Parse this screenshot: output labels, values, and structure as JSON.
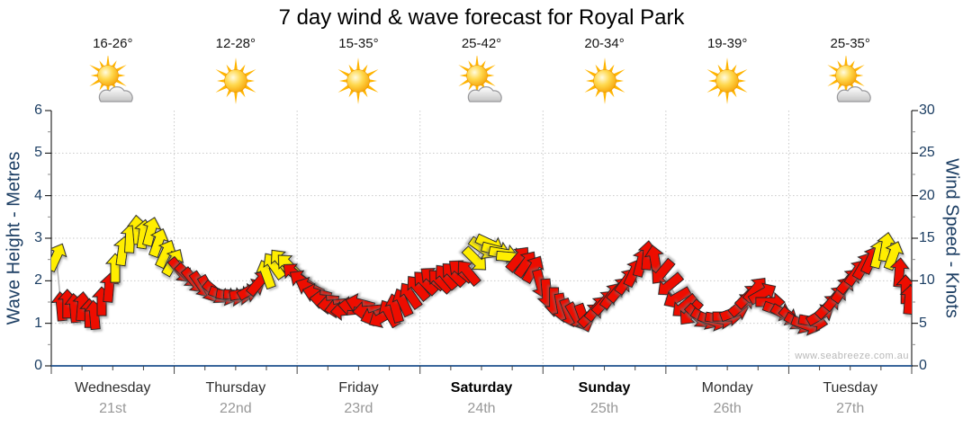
{
  "title": "7 day wind & wave forecast for Royal Park",
  "watermark": "www.seabreeze.com.au",
  "header": {
    "days": [
      {
        "name": "Wednesday",
        "date": "21st",
        "temp": "16-26°",
        "icon": "sun-cloud",
        "weekend": false
      },
      {
        "name": "Thursday",
        "date": "22nd",
        "temp": "12-28°",
        "icon": "sun",
        "weekend": false
      },
      {
        "name": "Friday",
        "date": "23rd",
        "temp": "15-35°",
        "icon": "sun",
        "weekend": false
      },
      {
        "name": "Saturday",
        "date": "24th",
        "temp": "25-42°",
        "icon": "sun-cloud",
        "weekend": true
      },
      {
        "name": "Sunday",
        "date": "25th",
        "temp": "20-34°",
        "icon": "sun",
        "weekend": true
      },
      {
        "name": "Monday",
        "date": "26th",
        "temp": "19-39°",
        "icon": "sun",
        "weekend": false
      },
      {
        "name": "Tuesday",
        "date": "27th",
        "temp": "25-35°",
        "icon": "sun-cloud",
        "weekend": false
      }
    ]
  },
  "axes": {
    "left": {
      "label": "Wave Height - Metres",
      "ticks": [
        "0",
        "1",
        "2",
        "3",
        "4",
        "5",
        "6"
      ]
    },
    "right": {
      "label": "Wind Speed - Knots",
      "ticks": [
        "0",
        "5",
        "10",
        "15",
        "20",
        "25",
        "30"
      ]
    }
  },
  "colors": {
    "arrow_red": "#ee1100",
    "arrow_yellow": "#ffee00",
    "arrow_outline": "#222222",
    "axis_text": "#1c3e63",
    "bottom_axis": "#38659b",
    "grid": "#c9c9c9",
    "trend_line": "#b3b3b3"
  },
  "chart_data": {
    "type": "scatter",
    "marker": "wind-direction-arrow",
    "title": "7 day wind & wave forecast for Royal Park",
    "x_unit": "days (0 = start of Wednesday 21st, 7 = end of Tuesday 27th)",
    "x_categories": [
      "Wednesday 21st",
      "Thursday 22nd",
      "Friday 23rd",
      "Saturday 24th",
      "Sunday 25th",
      "Monday 26th",
      "Tuesday 27th"
    ],
    "y_right_label": "Wind Speed - Knots",
    "y_right_range": [
      0,
      30
    ],
    "y_left_label": "Wave Height - Metres",
    "y_left_range": [
      0,
      6
    ],
    "grid": "dotted horizontal each 5 knots, dotted vertical each day boundary",
    "dir_convention": "degrees, 0 = arrow pointing up, 90 = pointing right",
    "arrow_colors_used": [
      "red",
      "yellow"
    ],
    "arrows": [
      [
        0.04,
        12.8,
        25,
        "y"
      ],
      [
        0.08,
        7.0,
        -5,
        "r"
      ],
      [
        0.13,
        7.3,
        0,
        "r"
      ],
      [
        0.19,
        6.8,
        -5,
        "r"
      ],
      [
        0.25,
        7.0,
        5,
        "r"
      ],
      [
        0.31,
        6.2,
        0,
        "r"
      ],
      [
        0.35,
        6.0,
        -5,
        "r"
      ],
      [
        0.41,
        7.6,
        0,
        "r"
      ],
      [
        0.47,
        9.2,
        5,
        "r"
      ],
      [
        0.52,
        11.5,
        0,
        "y"
      ],
      [
        0.58,
        13.5,
        8,
        "y"
      ],
      [
        0.64,
        15.0,
        3,
        "y"
      ],
      [
        0.7,
        16.0,
        -5,
        "y"
      ],
      [
        0.75,
        15.5,
        8,
        "y"
      ],
      [
        0.81,
        15.8,
        15,
        "y"
      ],
      [
        0.87,
        14.5,
        20,
        "y"
      ],
      [
        0.93,
        13.2,
        25,
        "y"
      ],
      [
        0.99,
        12.2,
        30,
        "y"
      ],
      [
        1.05,
        11.2,
        140,
        "r"
      ],
      [
        1.11,
        10.6,
        135,
        "r"
      ],
      [
        1.16,
        10.0,
        140,
        "r"
      ],
      [
        1.22,
        9.5,
        145,
        "r"
      ],
      [
        1.28,
        9.0,
        150,
        "r"
      ],
      [
        1.34,
        8.6,
        130,
        "r"
      ],
      [
        1.4,
        8.3,
        110,
        "r"
      ],
      [
        1.46,
        8.2,
        100,
        "r"
      ],
      [
        1.52,
        8.3,
        95,
        "r"
      ],
      [
        1.57,
        8.5,
        80,
        "r"
      ],
      [
        1.63,
        9.0,
        60,
        "r"
      ],
      [
        1.69,
        9.8,
        40,
        "r"
      ],
      [
        1.75,
        10.8,
        -20,
        "y"
      ],
      [
        1.81,
        11.8,
        -35,
        "y"
      ],
      [
        1.87,
        12.3,
        -40,
        "y"
      ],
      [
        1.93,
        11.8,
        -45,
        "y"
      ],
      [
        1.98,
        10.8,
        -50,
        "r"
      ],
      [
        2.04,
        10.0,
        -55,
        "r"
      ],
      [
        2.1,
        9.2,
        -65,
        "r"
      ],
      [
        2.16,
        8.5,
        -75,
        "r"
      ],
      [
        2.22,
        7.8,
        -85,
        "r"
      ],
      [
        2.28,
        7.2,
        -95,
        "r"
      ],
      [
        2.34,
        6.8,
        -100,
        "r"
      ],
      [
        2.39,
        6.5,
        -95,
        "r"
      ],
      [
        2.45,
        7.0,
        -85,
        "r"
      ],
      [
        2.51,
        7.3,
        -75,
        "r"
      ],
      [
        2.57,
        6.5,
        -95,
        "r"
      ],
      [
        2.63,
        5.9,
        -110,
        "r"
      ],
      [
        2.69,
        5.7,
        -120,
        "r"
      ],
      [
        2.75,
        6.2,
        -30,
        "r"
      ],
      [
        2.8,
        6.8,
        -15,
        "r"
      ],
      [
        2.86,
        7.5,
        -25,
        "r"
      ],
      [
        2.92,
        8.3,
        -35,
        "r"
      ],
      [
        2.98,
        9.2,
        -40,
        "r"
      ],
      [
        3.04,
        9.8,
        -45,
        "r"
      ],
      [
        3.1,
        10.3,
        -50,
        "r"
      ],
      [
        3.16,
        10.0,
        -45,
        "r"
      ],
      [
        3.21,
        10.5,
        -40,
        "r"
      ],
      [
        3.27,
        10.8,
        -45,
        "r"
      ],
      [
        3.33,
        11.2,
        -50,
        "r"
      ],
      [
        3.39,
        11.0,
        -40,
        "r"
      ],
      [
        3.45,
        12.5,
        135,
        "y"
      ],
      [
        3.51,
        13.8,
        125,
        "y"
      ],
      [
        3.57,
        14.3,
        115,
        "y"
      ],
      [
        3.62,
        13.6,
        105,
        "y"
      ],
      [
        3.68,
        13.2,
        100,
        "y"
      ],
      [
        3.74,
        12.8,
        95,
        "y"
      ],
      [
        3.8,
        12.6,
        40,
        "r"
      ],
      [
        3.86,
        12.0,
        35,
        "r"
      ],
      [
        3.92,
        11.4,
        30,
        "r"
      ],
      [
        3.98,
        9.6,
        165,
        "r"
      ],
      [
        4.03,
        8.5,
        175,
        "r"
      ],
      [
        4.09,
        7.5,
        180,
        "r"
      ],
      [
        4.15,
        6.8,
        170,
        "r"
      ],
      [
        4.21,
        6.2,
        160,
        "r"
      ],
      [
        4.27,
        5.8,
        150,
        "r"
      ],
      [
        4.33,
        5.6,
        160,
        "r"
      ],
      [
        4.39,
        6.0,
        45,
        "r"
      ],
      [
        4.44,
        6.8,
        40,
        "r"
      ],
      [
        4.5,
        7.5,
        42,
        "r"
      ],
      [
        4.56,
        8.3,
        35,
        "r"
      ],
      [
        4.62,
        9.0,
        40,
        "r"
      ],
      [
        4.68,
        10.0,
        35,
        "r"
      ],
      [
        4.74,
        11.0,
        25,
        "r"
      ],
      [
        4.8,
        12.2,
        15,
        "r"
      ],
      [
        4.85,
        13.0,
        5,
        "r"
      ],
      [
        4.91,
        12.5,
        -10,
        "r"
      ],
      [
        4.97,
        11.0,
        -140,
        "r"
      ],
      [
        5.03,
        9.5,
        -130,
        "r"
      ],
      [
        5.09,
        8.0,
        -120,
        "r"
      ],
      [
        5.15,
        7.0,
        -130,
        "r"
      ],
      [
        5.2,
        6.2,
        -140,
        "r"
      ],
      [
        5.26,
        5.8,
        135,
        "r"
      ],
      [
        5.32,
        5.5,
        120,
        "r"
      ],
      [
        5.38,
        5.3,
        110,
        "r"
      ],
      [
        5.44,
        5.5,
        100,
        "r"
      ],
      [
        5.5,
        5.8,
        90,
        "r"
      ],
      [
        5.56,
        6.3,
        70,
        "r"
      ],
      [
        5.62,
        7.2,
        50,
        "r"
      ],
      [
        5.67,
        8.2,
        45,
        "r"
      ],
      [
        5.73,
        9.0,
        40,
        "r"
      ],
      [
        5.79,
        8.5,
        60,
        "r"
      ],
      [
        5.85,
        7.5,
        90,
        "r"
      ],
      [
        5.91,
        6.5,
        110,
        "r"
      ],
      [
        5.97,
        6.0,
        120,
        "r"
      ],
      [
        6.03,
        5.5,
        130,
        "r"
      ],
      [
        6.08,
        5.0,
        120,
        "r"
      ],
      [
        6.14,
        4.8,
        110,
        "r"
      ],
      [
        6.2,
        5.2,
        100,
        "r"
      ],
      [
        6.26,
        6.0,
        60,
        "r"
      ],
      [
        6.32,
        7.0,
        45,
        "r"
      ],
      [
        6.38,
        8.0,
        40,
        "r"
      ],
      [
        6.44,
        9.0,
        35,
        "r"
      ],
      [
        6.49,
        10.0,
        40,
        "r"
      ],
      [
        6.55,
        11.0,
        35,
        "r"
      ],
      [
        6.61,
        11.8,
        30,
        "r"
      ],
      [
        6.67,
        12.5,
        25,
        "r"
      ],
      [
        6.73,
        13.2,
        15,
        "y"
      ],
      [
        6.79,
        14.0,
        10,
        "y"
      ],
      [
        6.85,
        13.0,
        20,
        "y"
      ],
      [
        6.9,
        11.0,
        5,
        "r"
      ],
      [
        6.95,
        9.0,
        0,
        "r"
      ],
      [
        6.98,
        7.8,
        5,
        "r"
      ]
    ]
  }
}
